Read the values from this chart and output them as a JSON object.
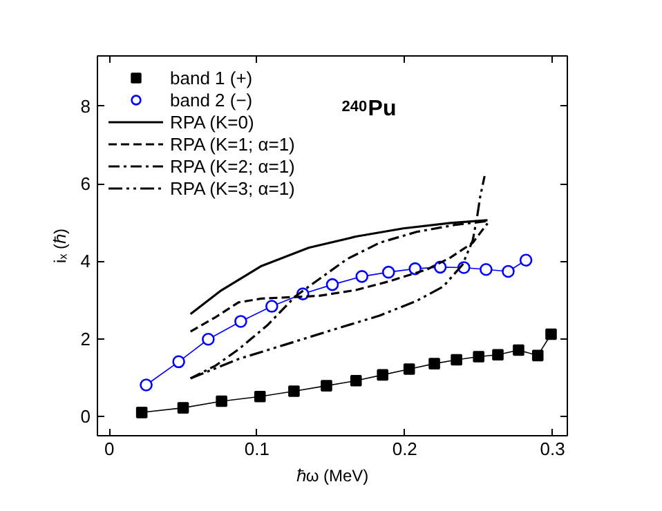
{
  "chart_data": {
    "type": "line",
    "xlabel": "ℏω (MeV)",
    "ylabel": "iₓ (ℏ)",
    "xlim": [
      -0.008,
      0.31
    ],
    "ylim": [
      -0.5,
      9.3
    ],
    "xticks": [
      0,
      0.1,
      0.2,
      0.3
    ],
    "yticks": [
      0,
      2,
      4,
      6,
      8
    ],
    "grid": false,
    "legend": "top left",
    "annotations": [
      "$^{240}$Pu"
    ],
    "series": [
      {
        "name": "band 1 (+)",
        "color": "#000000",
        "marker": "square",
        "line_style": "solid",
        "x": [
          0.022,
          0.05,
          0.076,
          0.102,
          0.125,
          0.147,
          0.167,
          0.185,
          0.203,
          0.22,
          0.235,
          0.25,
          0.263,
          0.277,
          0.29,
          0.299
        ],
        "values": [
          0.1,
          0.22,
          0.39,
          0.51,
          0.65,
          0.79,
          0.92,
          1.07,
          1.22,
          1.36,
          1.46,
          1.54,
          1.59,
          1.71,
          1.57,
          2.12
        ]
      },
      {
        "name": "band 2 (−)",
        "color": "#0000ff",
        "marker": "circle",
        "line_style": "solid",
        "x": [
          0.025,
          0.047,
          0.067,
          0.089,
          0.11,
          0.131,
          0.151,
          0.171,
          0.189,
          0.207,
          0.224,
          0.24,
          0.255,
          0.27,
          0.282
        ],
        "values": [
          0.81,
          1.41,
          1.99,
          2.45,
          2.84,
          3.16,
          3.4,
          3.61,
          3.72,
          3.81,
          3.85,
          3.84,
          3.79,
          3.74,
          4.03
        ]
      },
      {
        "name": "RPA (K=0)",
        "color": "#000000",
        "marker": "none",
        "line_style": "solid",
        "x": [
          0.055,
          0.075,
          0.103,
          0.135,
          0.167,
          0.199,
          0.231,
          0.256
        ],
        "values": [
          2.64,
          3.23,
          3.88,
          4.35,
          4.64,
          4.85,
          4.99,
          5.06
        ]
      },
      {
        "name": "RPA (K=1; α=1)",
        "color": "#000000",
        "marker": "none",
        "line_style": "dashed",
        "x": [
          0.055,
          0.072,
          0.0875,
          0.103,
          0.126,
          0.142,
          0.167,
          0.189,
          0.215,
          0.231,
          0.246,
          0.256
        ],
        "values": [
          2.19,
          2.56,
          2.94,
          3.04,
          3.08,
          3.11,
          3.26,
          3.48,
          3.79,
          4.1,
          4.48,
          4.98
        ]
      },
      {
        "name": "RPA (K=2; α=1)",
        "color": "#000000",
        "marker": "none",
        "line_style": "dashdot",
        "x": [
          0.055,
          0.072,
          0.0875,
          0.107,
          0.126,
          0.142,
          0.161,
          0.183,
          0.208,
          0.234,
          0.256
        ],
        "values": [
          0.98,
          1.31,
          1.73,
          2.35,
          3.1,
          3.54,
          4.06,
          4.48,
          4.76,
          4.94,
          5.04
        ]
      },
      {
        "name": "RPA (K=3; α=1)",
        "color": "#000000",
        "marker": "none",
        "line_style": "dashdotdot",
        "x": [
          0.055,
          0.0875,
          0.119,
          0.151,
          0.183,
          0.208,
          0.226,
          0.239,
          0.246,
          0.249,
          0.251,
          0.254
        ],
        "values": [
          0.98,
          1.48,
          1.85,
          2.23,
          2.6,
          2.98,
          3.35,
          3.91,
          4.54,
          5.16,
          5.66,
          6.2
        ]
      }
    ]
  }
}
